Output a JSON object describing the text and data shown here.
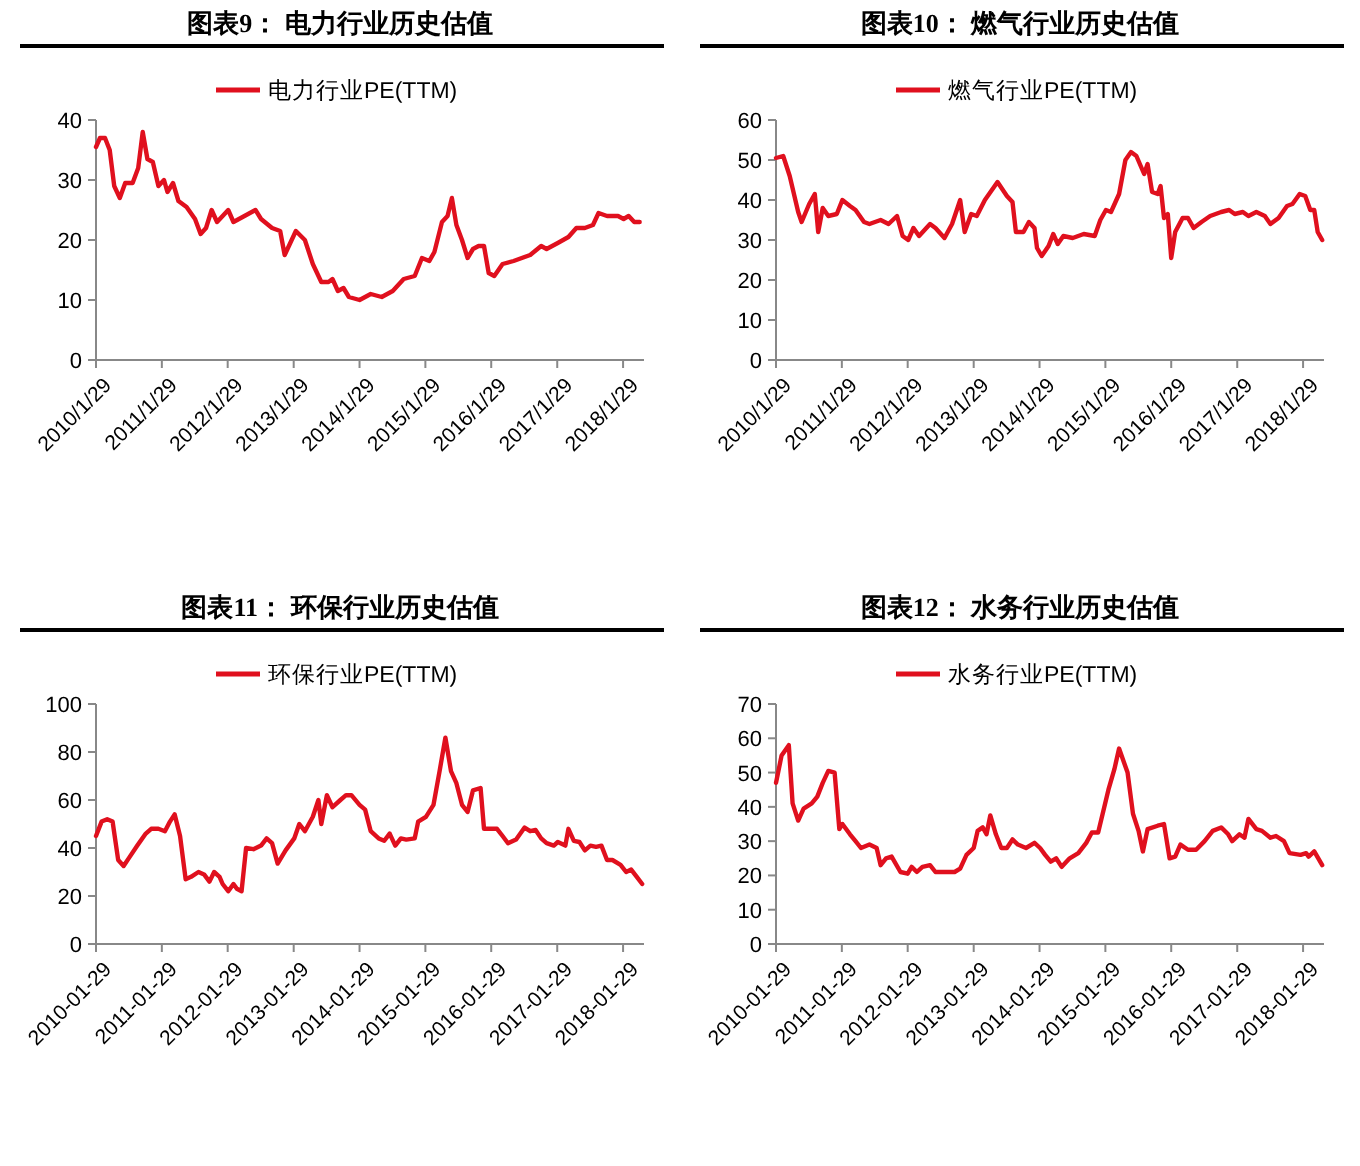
{
  "chart_data": [
    {
      "type": "line",
      "title": "图表9：  电力行业历史估值",
      "legend": "top",
      "grid": false,
      "xlim": [
        "2010-01-29",
        "2018-05-25"
      ],
      "ylim": [
        0,
        40
      ],
      "yticks": [
        0,
        10,
        20,
        30,
        40
      ],
      "xticks": [
        {
          "value": "2010-01-29",
          "label": "2010/1/29"
        },
        {
          "value": "2011-01-29",
          "label": "2011/1/29"
        },
        {
          "value": "2012-01-29",
          "label": "2012/1/29"
        },
        {
          "value": "2013-01-29",
          "label": "2013/1/29"
        },
        {
          "value": "2014-01-29",
          "label": "2014/1/29"
        },
        {
          "value": "2015-01-29",
          "label": "2015/1/29"
        },
        {
          "value": "2016-01-29",
          "label": "2016/1/29"
        },
        {
          "value": "2017-01-29",
          "label": "2017/1/29"
        },
        {
          "value": "2018-01-29",
          "label": "2018/1/29"
        }
      ],
      "series": [
        {
          "name": "电力行业PE(TTM)",
          "color": "#e0101e",
          "x": [
            "2010-01-29",
            "2010-02-20",
            "2010-03-20",
            "2010-04-15",
            "2010-05-10",
            "2010-06-10",
            "2010-07-10",
            "2010-08-20",
            "2010-09-20",
            "2010-10-15",
            "2010-11-10",
            "2010-12-10",
            "2011-01-10",
            "2011-02-10",
            "2011-03-01",
            "2011-04-01",
            "2011-05-01",
            "2011-06-15",
            "2011-08-01",
            "2011-09-01",
            "2011-10-01",
            "2011-11-01",
            "2011-12-01",
            "2012-01-01",
            "2012-02-01",
            "2012-03-01",
            "2012-05-01",
            "2012-07-01",
            "2012-08-01",
            "2012-10-01",
            "2012-11-15",
            "2012-12-10",
            "2013-01-10",
            "2013-02-10",
            "2013-04-01",
            "2013-05-15",
            "2013-07-01",
            "2013-08-10",
            "2013-09-01",
            "2013-10-01",
            "2013-11-01",
            "2013-12-01",
            "2014-01-29",
            "2014-04-01",
            "2014-06-01",
            "2014-08-01",
            "2014-10-01",
            "2014-12-01",
            "2015-01-10",
            "2015-02-20",
            "2015-03-20",
            "2015-05-01",
            "2015-06-01",
            "2015-06-25",
            "2015-07-20",
            "2015-08-20",
            "2015-09-20",
            "2015-10-20",
            "2015-11-20",
            "2015-12-20",
            "2016-01-15",
            "2016-02-15",
            "2016-04-01",
            "2016-06-01",
            "2016-09-01",
            "2016-11-01",
            "2016-12-01",
            "2017-02-01",
            "2017-04-01",
            "2017-05-15",
            "2017-07-01",
            "2017-08-15",
            "2017-09-15",
            "2017-11-01",
            "2018-01-01",
            "2018-02-01",
            "2018-03-01",
            "2018-04-01",
            "2018-05-01"
          ],
          "values": [
            35.5,
            37,
            37,
            35,
            29,
            27,
            29.5,
            29.5,
            32,
            38,
            33.5,
            33,
            29,
            30,
            28,
            29.5,
            26.5,
            25.5,
            23.5,
            21,
            22,
            25,
            23,
            24,
            25,
            23,
            24,
            25,
            23.5,
            22,
            21.5,
            17.5,
            19.5,
            21.5,
            20,
            16,
            13,
            13,
            13.5,
            11.5,
            12,
            10.5,
            10,
            11,
            10.5,
            11.5,
            13.5,
            14,
            17,
            16.5,
            18,
            23,
            24,
            27,
            22.5,
            20,
            17,
            18.5,
            19,
            19,
            14.5,
            14,
            16,
            16.5,
            17.5,
            19,
            18.5,
            19.5,
            20.5,
            22,
            22,
            22.5,
            24.5,
            24,
            24,
            23.5,
            24,
            23,
            23
          ]
        }
      ]
    },
    {
      "type": "line",
      "title": "图表10：  燃气行业历史估值",
      "legend": "top",
      "grid": false,
      "xlim": [
        "2010-01-29",
        "2018-05-25"
      ],
      "ylim": [
        0,
        60
      ],
      "yticks": [
        0,
        10,
        20,
        30,
        40,
        50,
        60
      ],
      "xticks": [
        {
          "value": "2010-01-29",
          "label": "2010/1/29"
        },
        {
          "value": "2011-01-29",
          "label": "2011/1/29"
        },
        {
          "value": "2012-01-29",
          "label": "2012/1/29"
        },
        {
          "value": "2013-01-29",
          "label": "2013/1/29"
        },
        {
          "value": "2014-01-29",
          "label": "2014/1/29"
        },
        {
          "value": "2015-01-29",
          "label": "2015/1/29"
        },
        {
          "value": "2016-01-29",
          "label": "2016/1/29"
        },
        {
          "value": "2017-01-29",
          "label": "2017/1/29"
        },
        {
          "value": "2018-01-29",
          "label": "2018/1/29"
        }
      ],
      "series": [
        {
          "name": "燃气行业PE(TTM)",
          "color": "#e0101e",
          "x": [
            "2010-01-29",
            "2010-03-10",
            "2010-04-15",
            "2010-06-01",
            "2010-06-20",
            "2010-08-01",
            "2010-09-01",
            "2010-09-20",
            "2010-10-15",
            "2010-11-15",
            "2011-01-01",
            "2011-02-01",
            "2011-03-15",
            "2011-04-15",
            "2011-06-01",
            "2011-07-01",
            "2011-09-01",
            "2011-10-15",
            "2011-12-01",
            "2012-01-01",
            "2012-02-01",
            "2012-03-01",
            "2012-04-01",
            "2012-06-01",
            "2012-07-01",
            "2012-08-20",
            "2012-10-01",
            "2012-11-15",
            "2012-12-10",
            "2013-01-15",
            "2013-02-15",
            "2013-04-01",
            "2013-06-10",
            "2013-08-01",
            "2013-09-01",
            "2013-09-20",
            "2013-11-01",
            "2013-12-01",
            "2014-01-01",
            "2014-01-15",
            "2014-02-10",
            "2014-03-20",
            "2014-04-15",
            "2014-05-10",
            "2014-06-10",
            "2014-08-01",
            "2014-10-01",
            "2014-12-01",
            "2015-01-01",
            "2015-02-01",
            "2015-03-01",
            "2015-04-15",
            "2015-05-20",
            "2015-06-20",
            "2015-07-20",
            "2015-09-01",
            "2015-09-20",
            "2015-10-15",
            "2015-11-15",
            "2015-12-01",
            "2015-12-20",
            "2016-01-10",
            "2016-01-29",
            "2016-02-20",
            "2016-04-01",
            "2016-05-01",
            "2016-06-01",
            "2016-07-15",
            "2016-09-01",
            "2016-11-01",
            "2016-12-15",
            "2017-01-15",
            "2017-03-01",
            "2017-04-01",
            "2017-05-15",
            "2017-07-01",
            "2017-08-01",
            "2017-09-15",
            "2017-11-01",
            "2017-12-01",
            "2018-01-10",
            "2018-02-10",
            "2018-03-10",
            "2018-04-01",
            "2018-04-20",
            "2018-05-15"
          ],
          "values": [
            50.5,
            51,
            46,
            37,
            34.5,
            39,
            41.5,
            32,
            38,
            36,
            36.5,
            40,
            38.5,
            37.5,
            34.5,
            34,
            35,
            34,
            36,
            31,
            30,
            33,
            31,
            34,
            33,
            30.5,
            34,
            40,
            32,
            36.5,
            36,
            40,
            44.5,
            41,
            39.5,
            32,
            32,
            34.5,
            33,
            28,
            26,
            28.5,
            31.5,
            29,
            31,
            30.5,
            31.5,
            31,
            35,
            37.5,
            37,
            41.5,
            50,
            52,
            51,
            46.5,
            49,
            42,
            41.5,
            43.5,
            35.5,
            36.5,
            25.5,
            32,
            35.5,
            35.5,
            33,
            34.5,
            36,
            37,
            37.5,
            36.5,
            37,
            36,
            37,
            36,
            34,
            35.5,
            38.5,
            39,
            41.5,
            41,
            37.5,
            37.5,
            32,
            30
          ]
        }
      ]
    },
    {
      "type": "line",
      "title": "图表11：  环保行业历史估值",
      "legend": "top",
      "grid": false,
      "xlim": [
        "2010-01-29",
        "2018-05-25"
      ],
      "ylim": [
        0,
        100
      ],
      "yticks": [
        0,
        20,
        40,
        60,
        80,
        100
      ],
      "xticks": [
        {
          "value": "2010-01-29",
          "label": "2010-01-29"
        },
        {
          "value": "2011-01-29",
          "label": "2011-01-29"
        },
        {
          "value": "2012-01-29",
          "label": "2012-01-29"
        },
        {
          "value": "2013-01-29",
          "label": "2013-01-29"
        },
        {
          "value": "2014-01-29",
          "label": "2014-01-29"
        },
        {
          "value": "2015-01-29",
          "label": "2015-01-29"
        },
        {
          "value": "2016-01-29",
          "label": "2016-01-29"
        },
        {
          "value": "2017-01-29",
          "label": "2017-01-29"
        },
        {
          "value": "2018-01-29",
          "label": "2018-01-29"
        }
      ],
      "series": [
        {
          "name": "环保行业PE(TTM)",
          "color": "#e0101e",
          "x": [
            "2010-01-29",
            "2010-03-01",
            "2010-04-01",
            "2010-05-01",
            "2010-06-01",
            "2010-07-01",
            "2010-08-01",
            "2010-09-15",
            "2010-11-01",
            "2010-12-01",
            "2011-01-10",
            "2011-02-15",
            "2011-03-15",
            "2011-04-10",
            "2011-05-10",
            "2011-06-10",
            "2011-07-10",
            "2011-08-20",
            "2011-09-20",
            "2011-10-20",
            "2011-11-15",
            "2011-12-15",
            "2012-01-01",
            "2012-02-01",
            "2012-03-01",
            "2012-03-20",
            "2012-04-15",
            "2012-05-10",
            "2012-06-20",
            "2012-08-01",
            "2012-09-01",
            "2012-10-01",
            "2012-11-01",
            "2012-12-15",
            "2013-02-01",
            "2013-03-01",
            "2013-04-01",
            "2013-05-15",
            "2013-06-15",
            "2013-07-01",
            "2013-08-01",
            "2013-09-01",
            "2013-10-15",
            "2013-11-15",
            "2013-12-15",
            "2014-01-29",
            "2014-03-01",
            "2014-04-01",
            "2014-05-15",
            "2014-06-15",
            "2014-07-15",
            "2014-08-15",
            "2014-09-15",
            "2014-10-15",
            "2014-12-01",
            "2014-12-20",
            "2015-02-01",
            "2015-03-15",
            "2015-04-20",
            "2015-05-20",
            "2015-06-20",
            "2015-07-20",
            "2015-08-20",
            "2015-09-20",
            "2015-10-20",
            "2015-12-01",
            "2015-12-20",
            "2016-01-29",
            "2016-03-01",
            "2016-04-01",
            "2016-05-01",
            "2016-06-15",
            "2016-08-01",
            "2016-09-01",
            "2016-10-01",
            "2016-11-01",
            "2016-12-01",
            "2017-01-10",
            "2017-02-01",
            "2017-03-15",
            "2017-04-01",
            "2017-05-01",
            "2017-06-01",
            "2017-07-01",
            "2017-08-01",
            "2017-09-01",
            "2017-10-01",
            "2017-11-01",
            "2017-12-01",
            "2018-01-15",
            "2018-02-15",
            "2018-03-15",
            "2018-04-15",
            "2018-05-15"
          ],
          "values": [
            45,
            51,
            52,
            51,
            35,
            32.5,
            36,
            41,
            46,
            48,
            48,
            47,
            51,
            54,
            45,
            27,
            28,
            30,
            29,
            26,
            30,
            28,
            25,
            22,
            25,
            23,
            22,
            40,
            39.5,
            41,
            44,
            42,
            33.5,
            39,
            44,
            50,
            47,
            53,
            60,
            50,
            62,
            57,
            60,
            62,
            62,
            58,
            56,
            47,
            44,
            43,
            46,
            41,
            44,
            43.5,
            44,
            51,
            53,
            58,
            73,
            86,
            72,
            67,
            58,
            55,
            64,
            65,
            48,
            48,
            48,
            45,
            42,
            43.5,
            48.5,
            47,
            47.5,
            44,
            42,
            41,
            42.5,
            41,
            48,
            43,
            42.5,
            39,
            41,
            40.5,
            41,
            35,
            35,
            33,
            30,
            31,
            28,
            25
          ]
        }
      ]
    },
    {
      "type": "line",
      "title": "图表12：  水务行业历史估值",
      "legend": "top",
      "grid": false,
      "xlim": [
        "2010-01-29",
        "2018-05-25"
      ],
      "ylim": [
        0,
        70
      ],
      "yticks": [
        0,
        10,
        20,
        30,
        40,
        50,
        60,
        70
      ],
      "xticks": [
        {
          "value": "2010-01-29",
          "label": "2010-01-29"
        },
        {
          "value": "2011-01-29",
          "label": "2011-01-29"
        },
        {
          "value": "2012-01-29",
          "label": "2012-01-29"
        },
        {
          "value": "2013-01-29",
          "label": "2013-01-29"
        },
        {
          "value": "2014-01-29",
          "label": "2014-01-29"
        },
        {
          "value": "2015-01-29",
          "label": "2015-01-29"
        },
        {
          "value": "2016-01-29",
          "label": "2016-01-29"
        },
        {
          "value": "2017-01-29",
          "label": "2017-01-29"
        },
        {
          "value": "2018-01-29",
          "label": "2018-01-29"
        }
      ],
      "series": [
        {
          "name": "水务行业PE(TTM)",
          "color": "#e0101e",
          "x": [
            "2010-01-29",
            "2010-03-01",
            "2010-04-10",
            "2010-05-01",
            "2010-06-01",
            "2010-07-01",
            "2010-08-15",
            "2010-09-15",
            "2010-10-15",
            "2010-11-15",
            "2010-12-20",
            "2011-01-15",
            "2011-02-01",
            "2011-03-15",
            "2011-04-15",
            "2011-05-15",
            "2011-07-01",
            "2011-08-10",
            "2011-09-01",
            "2011-10-01",
            "2011-11-01",
            "2011-12-20",
            "2012-01-29",
            "2012-02-20",
            "2012-03-20",
            "2012-04-20",
            "2012-06-01",
            "2012-07-01",
            "2012-09-01",
            "2012-10-15",
            "2012-11-15",
            "2012-12-20",
            "2013-01-29",
            "2013-02-20",
            "2013-03-20",
            "2013-04-10",
            "2013-05-01",
            "2013-06-01",
            "2013-07-01",
            "2013-08-01",
            "2013-09-01",
            "2013-10-01",
            "2013-11-15",
            "2014-01-01",
            "2014-02-01",
            "2014-03-01",
            "2014-04-01",
            "2014-05-01",
            "2014-06-01",
            "2014-07-15",
            "2014-09-01",
            "2014-10-15",
            "2014-11-15",
            "2014-12-20",
            "2015-02-15",
            "2015-03-20",
            "2015-04-15",
            "2015-06-01",
            "2015-07-01",
            "2015-08-01",
            "2015-08-25",
            "2015-09-20",
            "2015-11-15",
            "2015-12-20",
            "2016-01-20",
            "2016-02-20",
            "2016-03-20",
            "2016-05-01",
            "2016-06-15",
            "2016-08-01",
            "2016-09-15",
            "2016-11-01",
            "2016-12-10",
            "2017-01-01",
            "2017-02-10",
            "2017-03-10",
            "2017-04-01",
            "2017-05-15",
            "2017-06-15",
            "2017-08-01",
            "2017-09-01",
            "2017-10-15",
            "2017-11-15",
            "2018-01-15",
            "2018-02-15",
            "2018-03-01",
            "2018-04-01",
            "2018-05-15"
          ],
          "values": [
            47,
            55,
            58,
            41,
            36,
            39.5,
            41,
            43,
            47,
            50.5,
            50,
            33.5,
            35,
            32,
            30,
            28,
            29,
            28,
            23,
            25,
            25.5,
            21,
            20.5,
            22.5,
            21,
            22.5,
            23,
            21,
            21,
            21,
            22,
            26,
            28,
            33,
            34,
            32,
            37.5,
            32,
            28,
            28,
            30.5,
            29,
            28,
            29.5,
            28,
            26,
            24,
            25,
            22.5,
            25,
            26.5,
            29.5,
            32.5,
            32.5,
            45,
            51,
            57,
            50,
            38,
            33,
            27,
            33.5,
            34.5,
            35,
            25,
            25.5,
            29,
            27.5,
            27.5,
            30,
            33,
            34,
            32,
            30,
            32,
            31,
            36.5,
            33.5,
            33,
            31,
            31.5,
            30,
            26.5,
            26,
            26.5,
            25.5,
            27,
            23
          ]
        }
      ]
    }
  ]
}
